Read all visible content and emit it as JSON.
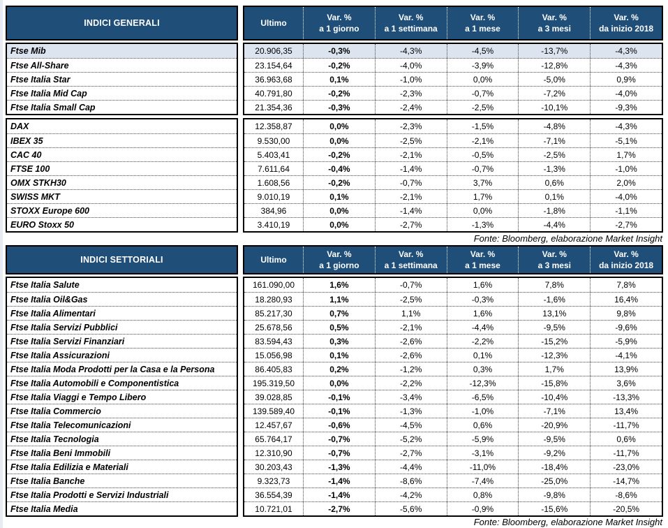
{
  "colors": {
    "header_bg": "#1F4E79",
    "header_text": "#FFFFFF",
    "highlight_row_bg": "#DCE4F0",
    "border": "#000000"
  },
  "columns": {
    "ultimo": "Ultimo",
    "vars": [
      {
        "line1": "Var. %",
        "line2": "a 1 giorno"
      },
      {
        "line1": "Var. %",
        "line2": "a 1 settimana"
      },
      {
        "line1": "Var. %",
        "line2": "a 1 mese"
      },
      {
        "line1": "Var. %",
        "line2": "a 3 mesi"
      },
      {
        "line1": "Var. %",
        "line2": "da inizio 2018"
      }
    ]
  },
  "tables": [
    {
      "title": "INDICI GENERALI",
      "source": "Fonte: Bloomberg, elaborazione Market Insight",
      "groups": [
        {
          "rows": [
            {
              "name": "Ftse Mib",
              "ultimo": "20.906,35",
              "vars": [
                "-0,3%",
                "-4,3%",
                "-4,5%",
                "-13,7%",
                "-4,3%"
              ],
              "highlight": true
            },
            {
              "name": "Ftse All-Share",
              "ultimo": "23.154,64",
              "vars": [
                "-0,2%",
                "-4,0%",
                "-3,9%",
                "-12,8%",
                "-4,3%"
              ]
            },
            {
              "name": "Ftse Italia Star",
              "ultimo": "36.963,68",
              "vars": [
                "0,1%",
                "-1,0%",
                "0,0%",
                "-5,0%",
                "0,9%"
              ]
            },
            {
              "name": "Ftse Italia Mid Cap",
              "ultimo": "40.791,80",
              "vars": [
                "-0,2%",
                "-2,3%",
                "-0,7%",
                "-7,2%",
                "-4,0%"
              ]
            },
            {
              "name": "Ftse Italia Small Cap",
              "ultimo": "21.354,36",
              "vars": [
                "-0,3%",
                "-2,4%",
                "-2,5%",
                "-10,1%",
                "-9,3%"
              ]
            }
          ]
        },
        {
          "rows": [
            {
              "name": "DAX",
              "ultimo": "12.358,87",
              "vars": [
                "0,0%",
                "-2,3%",
                "-1,5%",
                "-4,8%",
                "-4,3%"
              ]
            },
            {
              "name": "IBEX 35",
              "ultimo": "9.530,00",
              "vars": [
                "0,0%",
                "-2,5%",
                "-2,1%",
                "-7,1%",
                "-5,1%"
              ]
            },
            {
              "name": "CAC 40",
              "ultimo": "5.403,41",
              "vars": [
                "-0,2%",
                "-2,1%",
                "-0,5%",
                "-2,5%",
                "1,7%"
              ]
            },
            {
              "name": "FTSE 100",
              "ultimo": "7.611,64",
              "vars": [
                "-0,4%",
                "-1,4%",
                "-0,7%",
                "-1,3%",
                "-1,0%"
              ]
            },
            {
              "name": "OMX STKH30",
              "ultimo": "1.608,56",
              "vars": [
                "-0,2%",
                "-0,7%",
                "3,7%",
                "0,6%",
                "2,0%"
              ]
            },
            {
              "name": "SWISS MKT",
              "ultimo": "9.010,19",
              "vars": [
                "0,1%",
                "-2,1%",
                "1,7%",
                "0,1%",
                "-4,0%"
              ]
            },
            {
              "name": "STOXX Europe 600",
              "ultimo": "384,96",
              "vars": [
                "0,0%",
                "-1,4%",
                "0,0%",
                "-1,8%",
                "-1,1%"
              ]
            },
            {
              "name": "EURO Stoxx 50",
              "ultimo": "3.410,19",
              "vars": [
                "0,0%",
                "-2,7%",
                "-1,3%",
                "-4,4%",
                "-2,7%"
              ]
            }
          ]
        }
      ]
    },
    {
      "title": "INDICI SETTORIALI",
      "source": "Fonte: Bloomberg, elaborazione Market Insight",
      "groups": [
        {
          "rows": [
            {
              "name": "Ftse Italia Salute",
              "ultimo": "161.090,00",
              "vars": [
                "1,6%",
                "-0,7%",
                "1,6%",
                "7,8%",
                "7,8%"
              ]
            },
            {
              "name": "Ftse Italia Oil&Gas",
              "ultimo": "18.280,93",
              "vars": [
                "1,1%",
                "-2,5%",
                "-0,3%",
                "-1,6%",
                "16,4%"
              ]
            },
            {
              "name": "Ftse Italia Alimentari",
              "ultimo": "85.217,30",
              "vars": [
                "0,7%",
                "1,1%",
                "1,6%",
                "13,1%",
                "9,8%"
              ]
            },
            {
              "name": "Ftse Italia Servizi Pubblici",
              "ultimo": "25.678,56",
              "vars": [
                "0,5%",
                "-2,1%",
                "-4,4%",
                "-9,5%",
                "-9,6%"
              ]
            },
            {
              "name": "Ftse Italia Servizi Finanziari",
              "ultimo": "83.594,43",
              "vars": [
                "0,3%",
                "-2,6%",
                "-2,2%",
                "-15,2%",
                "-5,9%"
              ]
            },
            {
              "name": "Ftse Italia Assicurazioni",
              "ultimo": "15.056,98",
              "vars": [
                "0,1%",
                "-2,6%",
                "0,1%",
                "-12,3%",
                "-4,1%"
              ]
            },
            {
              "name": "Ftse Italia Moda Prodotti per la Casa e la Persona",
              "ultimo": "86.405,83",
              "vars": [
                "0,2%",
                "-1,2%",
                "0,3%",
                "1,7%",
                "13,9%"
              ]
            },
            {
              "name": "Ftse Italia Automobili e Componentistica",
              "ultimo": "195.319,50",
              "vars": [
                "0,0%",
                "-2,2%",
                "-12,3%",
                "-15,8%",
                "3,6%"
              ]
            },
            {
              "name": "Ftse Italia Viaggi e Tempo Libero",
              "ultimo": "39.028,85",
              "vars": [
                "-0,1%",
                "-3,4%",
                "-6,5%",
                "-10,4%",
                "-13,3%"
              ]
            },
            {
              "name": "Ftse Italia Commercio",
              "ultimo": "139.589,40",
              "vars": [
                "-0,1%",
                "-1,3%",
                "-1,0%",
                "-7,1%",
                "13,4%"
              ]
            },
            {
              "name": "Ftse Italia Telecomunicazioni",
              "ultimo": "12.457,67",
              "vars": [
                "-0,6%",
                "-4,5%",
                "0,6%",
                "-20,9%",
                "-11,7%"
              ]
            },
            {
              "name": "Ftse Italia Tecnologia",
              "ultimo": "65.764,17",
              "vars": [
                "-0,7%",
                "-5,2%",
                "-5,9%",
                "-9,5%",
                "0,6%"
              ]
            },
            {
              "name": "Ftse Italia Beni Immobili",
              "ultimo": "12.310,90",
              "vars": [
                "-0,7%",
                "-2,7%",
                "-3,1%",
                "-9,2%",
                "-11,7%"
              ]
            },
            {
              "name": "Ftse Italia Edilizia e Materiali",
              "ultimo": "30.203,43",
              "vars": [
                "-1,3%",
                "-4,4%",
                "-11,0%",
                "-18,4%",
                "-23,0%"
              ]
            },
            {
              "name": "Ftse Italia Banche",
              "ultimo": "9.323,73",
              "vars": [
                "-1,4%",
                "-8,6%",
                "-7,4%",
                "-25,0%",
                "-14,7%"
              ]
            },
            {
              "name": "Ftse Italia Prodotti e Servizi Industriali",
              "ultimo": "36.554,39",
              "vars": [
                "-1,4%",
                "-4,2%",
                "0,8%",
                "-9,8%",
                "-8,6%"
              ]
            },
            {
              "name": "Ftse Italia Media",
              "ultimo": "10.721,01",
              "vars": [
                "-2,7%",
                "-5,6%",
                "-0,9%",
                "-15,6%",
                "-20,5%"
              ]
            }
          ]
        }
      ]
    }
  ]
}
